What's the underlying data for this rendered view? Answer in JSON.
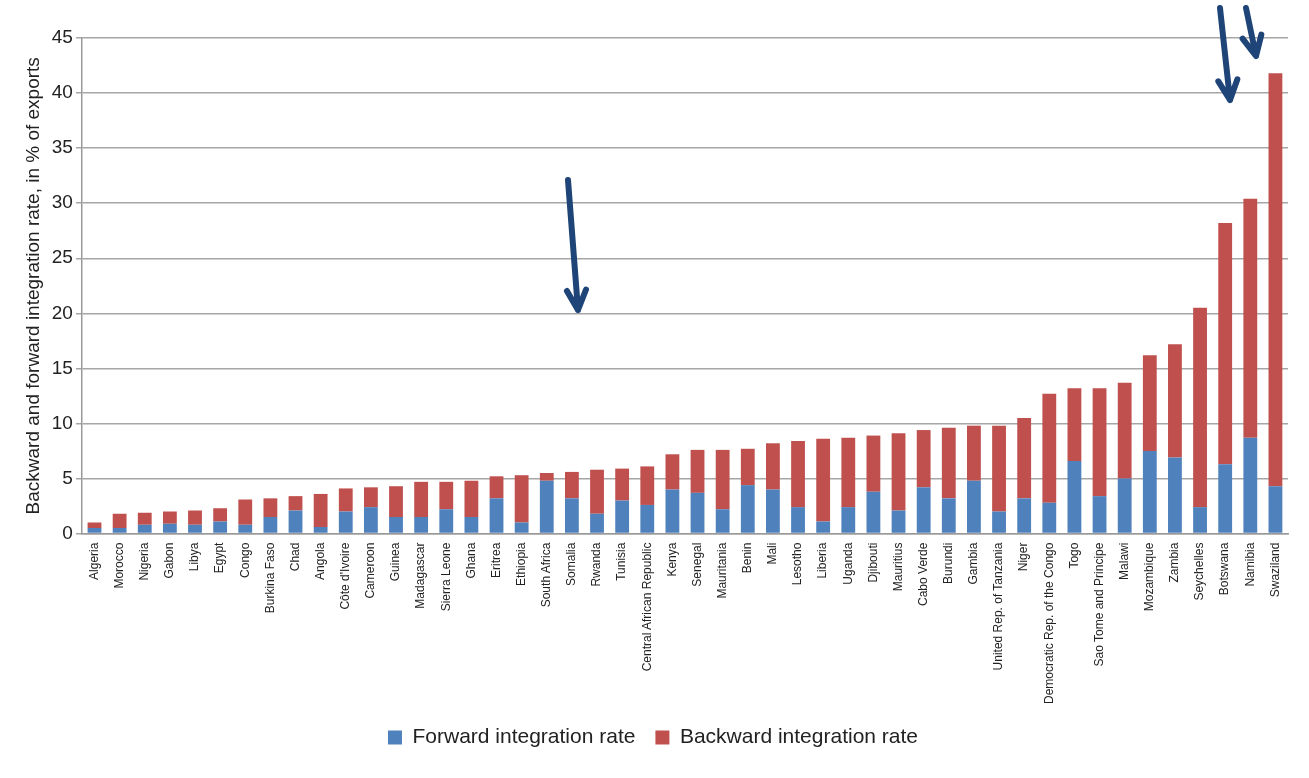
{
  "chart_data": {
    "type": "bar",
    "stacked": true,
    "ylabel": "Backward and forward integration rate, in % of exports",
    "categories": [
      "Algeria",
      "Morocco",
      "Nigeria",
      "Gabon",
      "Libya",
      "Egypt",
      "Congo",
      "Burkina Faso",
      "Chad",
      "Angola",
      "Côte d'Ivoire",
      "Cameroon",
      "Guinea",
      "Madagascar",
      "Sierra Leone",
      "Ghana",
      "Eritrea",
      "Ethiopia",
      "South Africa",
      "Somalia",
      "Rwanda",
      "Tunisia",
      "Central African Republic",
      "Kenya",
      "Senegal",
      "Mauritania",
      "Benin",
      "Mali",
      "Lesotho",
      "Liberia",
      "Uganda",
      "Djibouti",
      "Mauritius",
      "Cabo Verde",
      "Burundi",
      "Gambia",
      "United Rep. of Tanzania",
      "Niger",
      "Democratic Rep. of the Congo",
      "Togo",
      "Sao Tome and Principe",
      "Malawi",
      "Mozambique",
      "Zambia",
      "Seychelles",
      "Botswana",
      "Namibia",
      "Swaziland"
    ],
    "series": [
      {
        "name": "Forward integration rate",
        "color": "#4f81bd",
        "values": [
          0.5,
          0.5,
          0.8,
          0.9,
          0.8,
          1.1,
          0.8,
          1.5,
          2.1,
          0.6,
          2.0,
          2.4,
          1.5,
          1.5,
          2.2,
          1.5,
          3.2,
          1.0,
          4.8,
          3.2,
          1.8,
          3.0,
          2.6,
          4.0,
          3.7,
          2.2,
          4.4,
          4.0,
          2.4,
          1.1,
          2.4,
          3.8,
          2.1,
          4.2,
          3.2,
          4.8,
          2.0,
          3.2,
          2.8,
          6.6,
          3.4,
          5.0,
          7.5,
          6.9,
          2.4,
          6.3,
          8.7,
          4.3
        ]
      },
      {
        "name": "Backward integration rate",
        "color": "#c0504d",
        "values": [
          0.5,
          1.3,
          1.1,
          1.1,
          1.3,
          1.2,
          2.3,
          1.7,
          1.3,
          3.0,
          2.1,
          1.8,
          2.8,
          3.2,
          2.5,
          3.3,
          2.0,
          4.3,
          0.7,
          2.4,
          4.0,
          2.9,
          3.5,
          3.2,
          3.9,
          5.4,
          3.3,
          4.2,
          6.0,
          7.5,
          6.3,
          5.1,
          7.0,
          5.2,
          6.4,
          5.0,
          7.8,
          7.3,
          9.9,
          6.6,
          9.8,
          8.7,
          8.7,
          10.3,
          18.1,
          21.9,
          21.7,
          37.5
        ]
      }
    ],
    "ylim": [
      0,
      45
    ],
    "yticks": [
      0,
      5,
      10,
      15,
      20,
      25,
      30,
      35,
      40,
      45
    ],
    "grid": "y",
    "legend": "bottom"
  }
}
